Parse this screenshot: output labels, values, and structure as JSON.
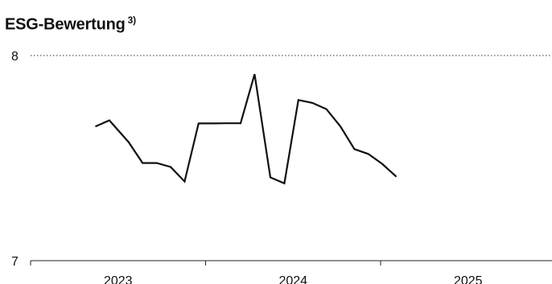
{
  "chart_data": {
    "type": "line",
    "title": "ESG-Bewertung",
    "title_note": "3)",
    "xlabel": "",
    "ylabel": "",
    "y_ticks": [
      "8",
      "7"
    ],
    "ylim": [
      7,
      8
    ],
    "x_ticks": [
      "2023",
      "2024",
      "2025"
    ],
    "grid": "dotted line at 8",
    "series": [
      {
        "color": "#111111",
        "points": [
          {
            "x": 2022.87,
            "y": 7.654
          },
          {
            "x": 2022.95,
            "y": 7.684
          },
          {
            "x": 2023.06,
            "y": 7.578
          },
          {
            "x": 2023.14,
            "y": 7.476
          },
          {
            "x": 2023.22,
            "y": 7.476
          },
          {
            "x": 2023.3,
            "y": 7.457
          },
          {
            "x": 2023.38,
            "y": 7.386
          },
          {
            "x": 2023.46,
            "y": 7.669
          },
          {
            "x": 2023.54,
            "y": 7.669
          },
          {
            "x": 2023.62,
            "y": 7.67
          },
          {
            "x": 2023.7,
            "y": 7.67
          },
          {
            "x": 2023.78,
            "y": 7.909
          },
          {
            "x": 2023.87,
            "y": 7.406
          },
          {
            "x": 2023.95,
            "y": 7.377
          },
          {
            "x": 2024.03,
            "y": 7.783
          },
          {
            "x": 2024.11,
            "y": 7.769
          },
          {
            "x": 2024.19,
            "y": 7.739
          },
          {
            "x": 2024.27,
            "y": 7.655
          },
          {
            "x": 2024.35,
            "y": 7.544
          },
          {
            "x": 2024.43,
            "y": 7.52
          },
          {
            "x": 2024.51,
            "y": 7.471
          },
          {
            "x": 2024.59,
            "y": 7.409
          }
        ]
      }
    ]
  }
}
